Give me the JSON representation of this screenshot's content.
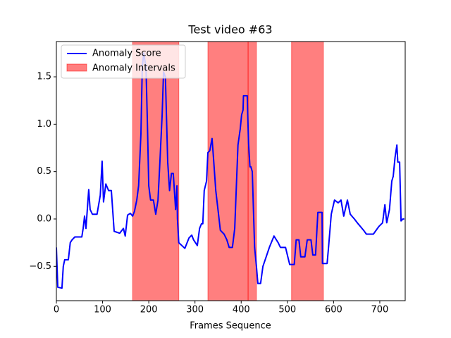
{
  "chart_data": {
    "type": "line",
    "title": "Test video #63",
    "xlabel": "Frames Sequence",
    "x": [
      0,
      3,
      12,
      15,
      18,
      26,
      30,
      34,
      40,
      55,
      58,
      61,
      64,
      67,
      70,
      73,
      78,
      88,
      95,
      99,
      102,
      107,
      113,
      119,
      125,
      137,
      145,
      149,
      154,
      160,
      165,
      169,
      174,
      178,
      183,
      186,
      189,
      194,
      197,
      200,
      204,
      210,
      215,
      220,
      224,
      229,
      232,
      236,
      241,
      245,
      249,
      253,
      258,
      261,
      262,
      265,
      278,
      287,
      293,
      297,
      305,
      310,
      314,
      317,
      320,
      325,
      328,
      332,
      337,
      340,
      345,
      351,
      355,
      363,
      369,
      374,
      381,
      386,
      390,
      393,
      398,
      401,
      404,
      405,
      413,
      416,
      419,
      421,
      424,
      429,
      433,
      436,
      442,
      447,
      454,
      461,
      471,
      480,
      485,
      496,
      502,
      505,
      515,
      519,
      525,
      529,
      538,
      543,
      551,
      555,
      561,
      566,
      575,
      576,
      586,
      589,
      595,
      602,
      610,
      616,
      622,
      630,
      636,
      645,
      653,
      665,
      671,
      686,
      698,
      706,
      711,
      715,
      721,
      726,
      729,
      733,
      737,
      739,
      743,
      746,
      750,
      753
    ],
    "series": [
      {
        "name": "Anomaly Score",
        "color": "#0000ff",
        "values": [
          -0.3,
          -0.72,
          -0.73,
          -0.5,
          -0.43,
          -0.43,
          -0.25,
          -0.22,
          -0.19,
          -0.19,
          -0.1,
          0.03,
          -0.1,
          0.1,
          0.31,
          0.1,
          0.05,
          0.05,
          0.25,
          0.61,
          0.18,
          0.37,
          0.3,
          0.3,
          -0.13,
          -0.15,
          -0.1,
          -0.18,
          0.04,
          0.06,
          0.03,
          0.08,
          0.2,
          0.35,
          0.9,
          1.6,
          1.75,
          1.6,
          1.0,
          0.35,
          0.2,
          0.2,
          0.05,
          0.2,
          0.6,
          1.1,
          1.55,
          1.5,
          0.6,
          0.3,
          0.48,
          0.48,
          0.1,
          0.35,
          0.0,
          -0.25,
          -0.31,
          -0.2,
          -0.17,
          -0.22,
          -0.28,
          -0.1,
          -0.05,
          -0.05,
          0.3,
          0.4,
          0.7,
          0.72,
          0.85,
          0.65,
          0.3,
          0.05,
          -0.12,
          -0.16,
          -0.22,
          -0.3,
          -0.3,
          -0.1,
          0.4,
          0.78,
          0.95,
          1.1,
          1.15,
          1.3,
          1.3,
          0.8,
          0.55,
          0.55,
          0.5,
          -0.3,
          -0.5,
          -0.68,
          -0.68,
          -0.5,
          -0.4,
          -0.3,
          -0.18,
          -0.25,
          -0.3,
          -0.3,
          -0.42,
          -0.48,
          -0.48,
          -0.22,
          -0.22,
          -0.4,
          -0.4,
          -0.22,
          -0.22,
          -0.38,
          -0.38,
          0.07,
          0.07,
          -0.47,
          -0.47,
          -0.3,
          0.05,
          0.2,
          0.17,
          0.2,
          0.03,
          0.2,
          0.05,
          0.0,
          -0.05,
          -0.12,
          -0.16,
          -0.16,
          -0.08,
          -0.04,
          0.15,
          -0.04,
          0.1,
          0.4,
          0.45,
          0.65,
          0.78,
          0.6,
          0.6,
          -0.02,
          0.0,
          0.0
        ]
      }
    ],
    "intervals": {
      "name": "Anomaly Intervals",
      "color": "#ff0000",
      "spans": [
        [
          165,
          265
        ],
        [
          328,
          415
        ],
        [
          415,
          433
        ],
        [
          509,
          578
        ]
      ]
    },
    "xlim": [
      0,
      755
    ],
    "xticks": [
      0,
      100,
      200,
      300,
      400,
      500,
      600,
      700
    ],
    "ylim": [
      -0.862,
      1.872
    ],
    "yticks": [
      {
        "value": -0.5,
        "label": "−0.5"
      },
      {
        "value": 0,
        "label": "0.0"
      },
      0.5,
      {
        "value": 1,
        "label": "1.0"
      },
      1.5
    ],
    "legend": "upper left"
  }
}
